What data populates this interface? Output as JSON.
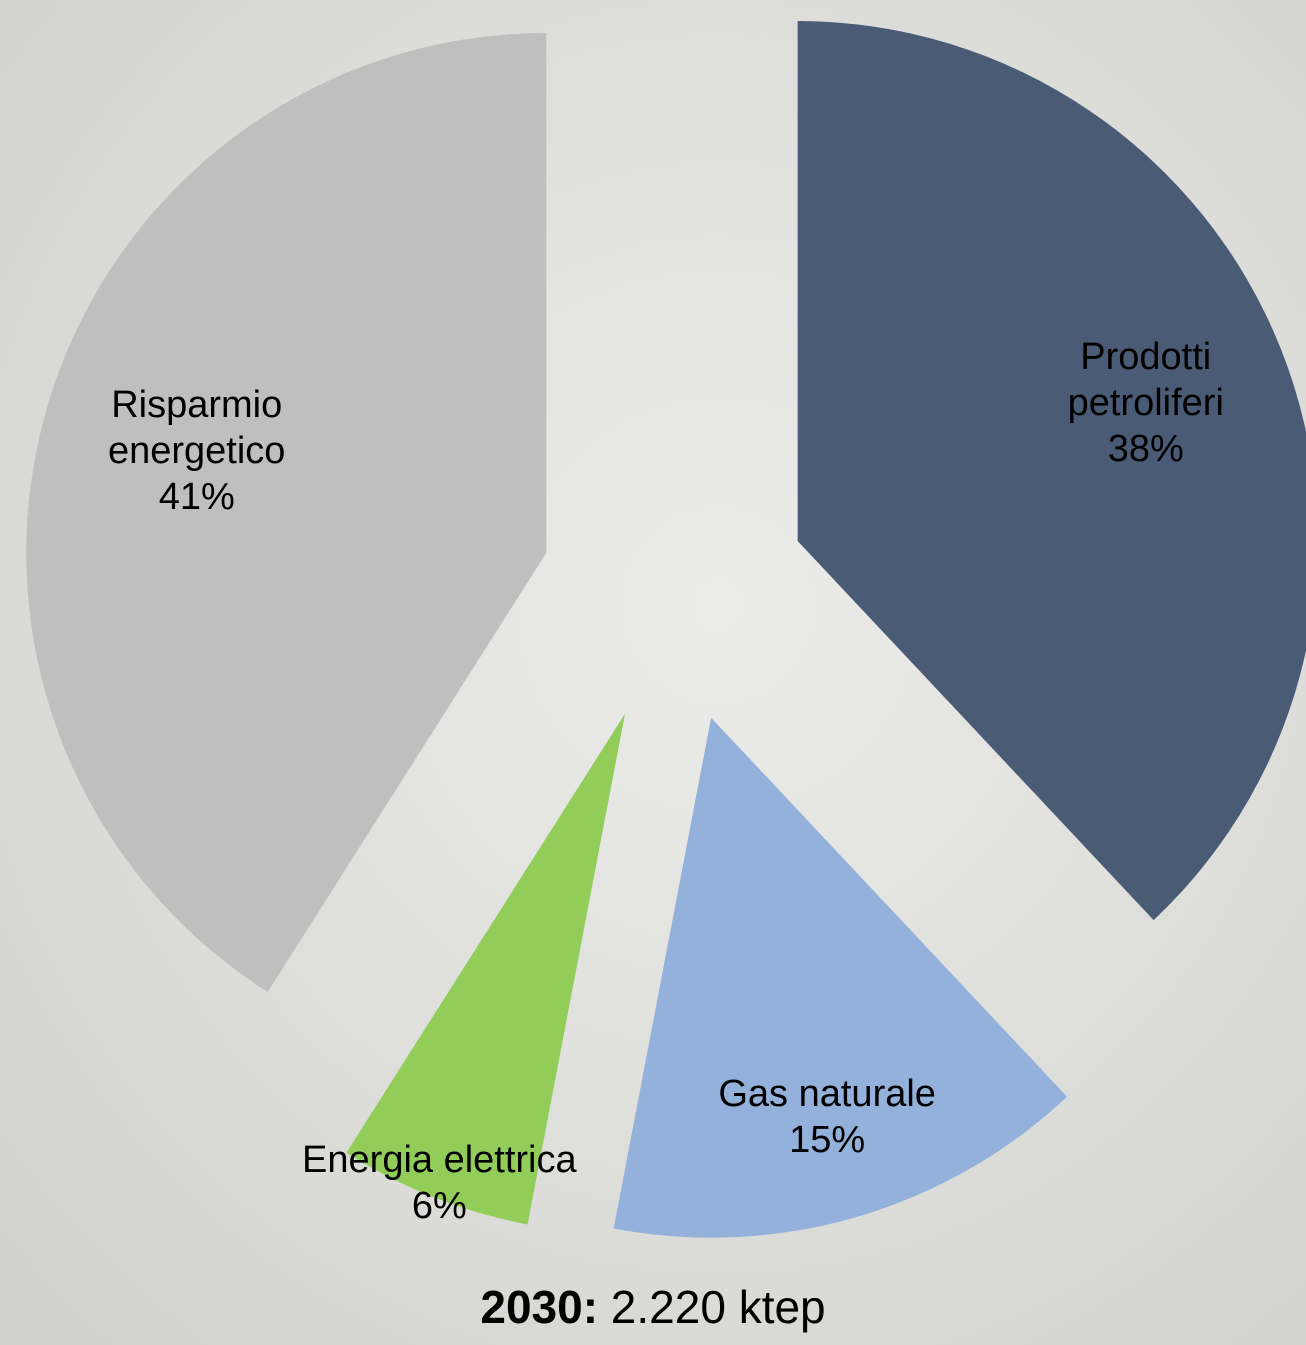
{
  "chart_data": {
    "type": "pie",
    "title_lead": "2030:",
    "title": "2.220 ktep",
    "categories": [
      "Prodotti petroliferi",
      "Gas naturale",
      "Energia elettrica",
      "Risparmio energetico"
    ],
    "values": [
      38,
      15,
      6,
      41
    ],
    "value_labels": [
      "38%",
      "15%",
      "6%",
      "41%"
    ],
    "colors": [
      "#4a5b75",
      "#93b1da",
      "#92cd5a",
      "#bfbfbf"
    ],
    "exploded": true
  }
}
